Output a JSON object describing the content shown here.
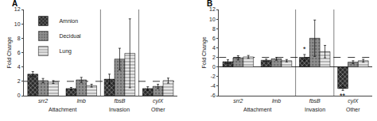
{
  "chart_data": [
    {
      "type": "bar",
      "title": "A",
      "categories": [
        "srr2",
        "lmb",
        "fbsB",
        "cylX"
      ],
      "groups": [
        {
          "label": "Attachment",
          "categories": [
            "srr2",
            "lmb"
          ]
        },
        {
          "label": "Invasion",
          "categories": [
            "fbsB"
          ]
        },
        {
          "label": "Other",
          "categories": [
            "cylX"
          ]
        }
      ],
      "series": [
        {
          "name": "Amnion",
          "color": "#2a2a2a",
          "values": [
            3.0,
            1.0,
            2.3,
            1.0
          ],
          "errors": [
            0.35,
            0.15,
            0.7,
            0.25
          ]
        },
        {
          "name": "Decidual",
          "color": "#909090",
          "values": [
            2.1,
            2.2,
            5.1,
            1.3
          ],
          "errors": [
            0.3,
            0.35,
            1.5,
            0.3
          ]
        },
        {
          "name": "Lung",
          "color": "#e8e8e8",
          "values": [
            1.9,
            1.4,
            5.9,
            2.1
          ],
          "errors": [
            0.2,
            0.2,
            4.8,
            0.35
          ]
        }
      ],
      "ylabel": "Fold Change",
      "ylim": [
        0,
        12
      ],
      "yticks": [
        0,
        2,
        4,
        6,
        8,
        10,
        12
      ],
      "dashed_line": 2.0,
      "grid": false,
      "legend": "upper left"
    },
    {
      "type": "bar",
      "title": "B",
      "categories": [
        "srr2",
        "lmb",
        "fbsB",
        "cylX"
      ],
      "groups": [
        {
          "label": "Attachment",
          "categories": [
            "srr2",
            "lmb"
          ]
        },
        {
          "label": "Invasion",
          "categories": [
            "fbsB"
          ]
        },
        {
          "label": "Other",
          "categories": [
            "cylX"
          ]
        }
      ],
      "series": [
        {
          "name": "Amnion",
          "color": "#2a2a2a",
          "values": [
            1.1,
            1.4,
            2.0,
            -4.5
          ],
          "errors": [
            0.4,
            0.25,
            0.6,
            0.4
          ]
        },
        {
          "name": "Decidual",
          "color": "#909090",
          "values": [
            1.9,
            1.7,
            6.0,
            1.0
          ],
          "errors": [
            0.45,
            0.3,
            3.8,
            0.3
          ]
        },
        {
          "name": "Lung",
          "color": "#e8e8e8",
          "values": [
            2.1,
            1.3,
            3.2,
            1.3
          ],
          "errors": [
            0.3,
            0.25,
            1.3,
            0.3
          ]
        }
      ],
      "ylabel": "Fold Change",
      "ylim": [
        -6,
        12
      ],
      "yticks": [
        -6,
        -4,
        -2,
        0,
        2,
        4,
        6,
        8,
        10,
        12
      ],
      "dashed_line": 2.0,
      "grid": false,
      "annotations": [
        {
          "text": "*",
          "category": "fbsB",
          "series": "Amnion"
        },
        {
          "text": "**",
          "category": "cylX",
          "series": "Amnion"
        }
      ]
    }
  ]
}
